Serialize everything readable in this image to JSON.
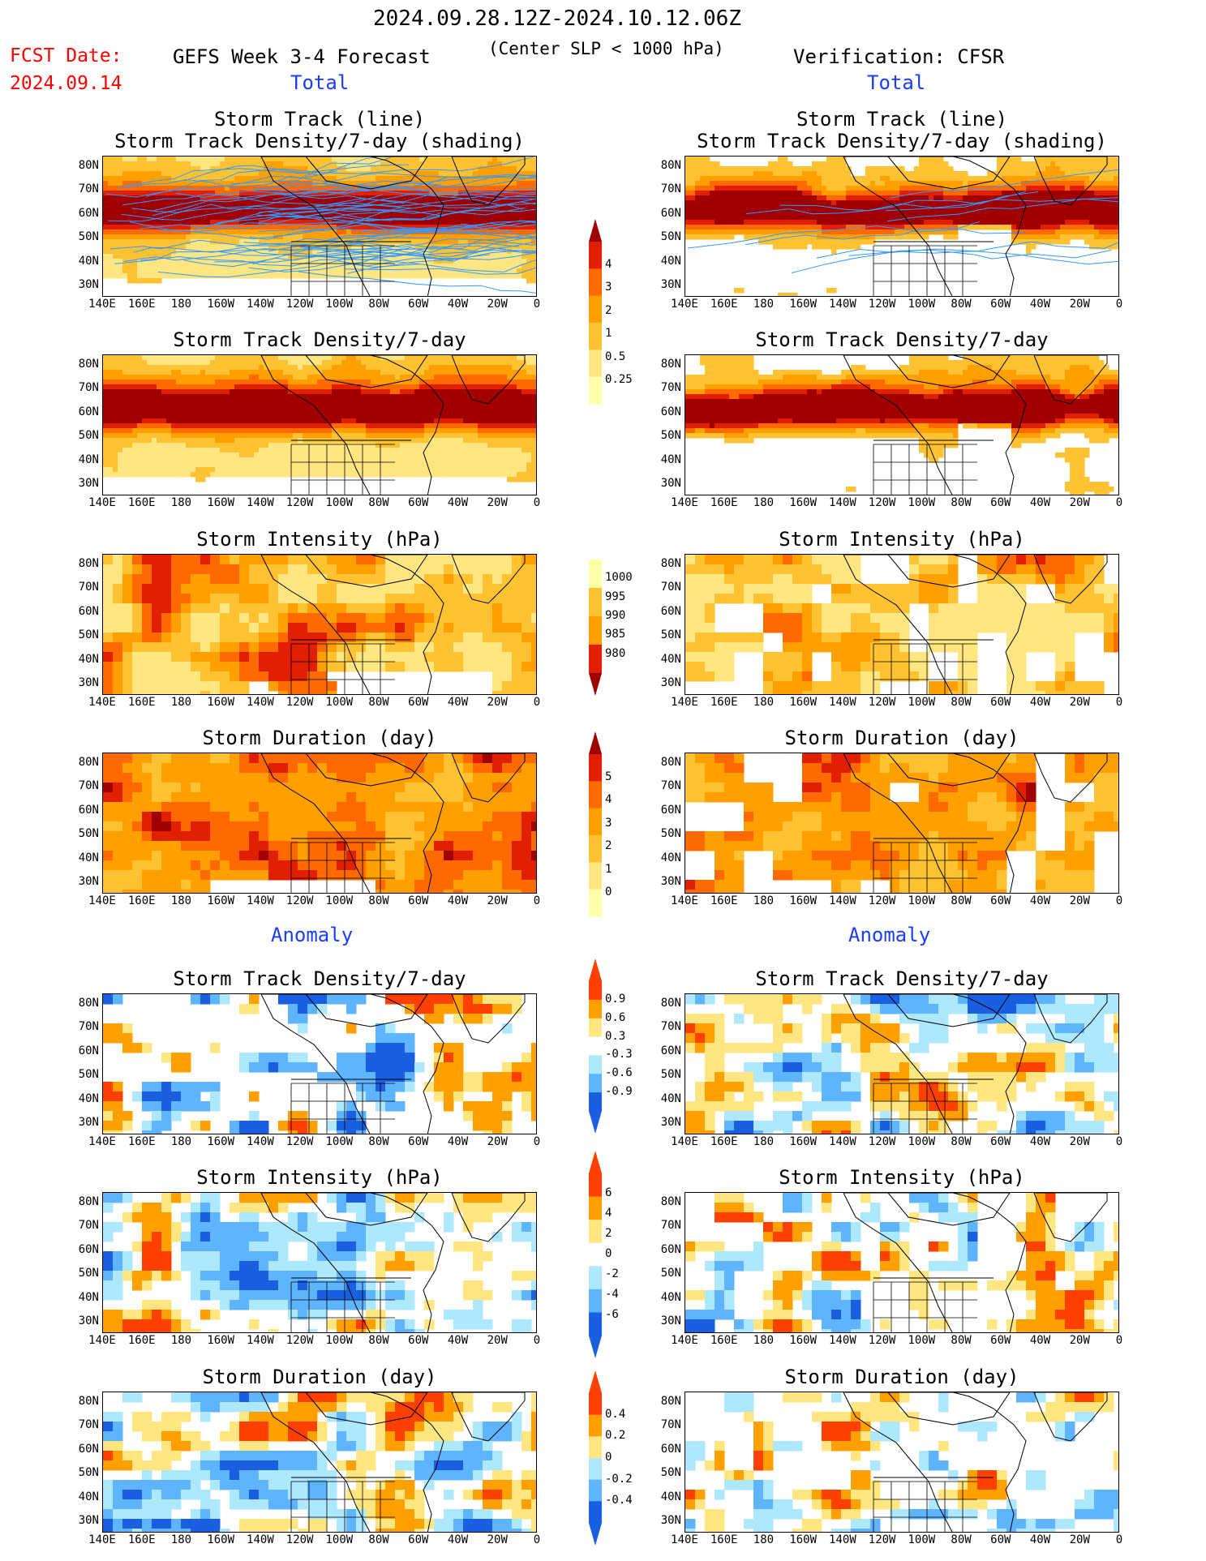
{
  "header": {
    "period": "2024.09.28.12Z-2024.10.12.06Z",
    "fcst_label": "FCST Date:",
    "fcst_date": "2024.09.14",
    "model_title": "GEFS Week 3-4 Forecast",
    "criterion": "(Center SLP < 1000 hPa)",
    "verification": "Verification: CFSR"
  },
  "sections": {
    "total": "Total",
    "anomaly": "Anomaly"
  },
  "panel_titles": {
    "track_line": "Storm Track (line)",
    "track_shading": "Storm Track Density/7-day (shading)",
    "density": "Storm Track Density/7-day",
    "intensity": "Storm Intensity (hPa)",
    "duration": "Storm Duration (day)"
  },
  "axes": {
    "lat_labels": [
      "80N",
      "70N",
      "60N",
      "50N",
      "40N",
      "30N"
    ],
    "lon_labels": [
      "140E",
      "160E",
      "180",
      "160W",
      "140W",
      "120W",
      "100W",
      "80W",
      "60W",
      "40W",
      "20W",
      "0"
    ]
  },
  "colorbars": {
    "density": [
      "4",
      "3",
      "2",
      "1",
      "0.5",
      "0.25"
    ],
    "intensity": [
      "1000",
      "995",
      "990",
      "985",
      "980"
    ],
    "duration": [
      "5",
      "4",
      "3",
      "2",
      "1",
      "0"
    ],
    "density_anom": [
      "0.9",
      "0.6",
      "0.3",
      "-0.3",
      "-0.6",
      "-0.9"
    ],
    "intensity_anom": [
      "6",
      "4",
      "2",
      "0",
      "-2",
      "-4",
      "-6"
    ],
    "duration_anom": [
      "0.4",
      "0.2",
      "0",
      "-0.2",
      "-0.4"
    ]
  },
  "colors": {
    "seq": [
      "#ffffa8",
      "#ffe680",
      "#ffc233",
      "#ffa000",
      "#ff6a00",
      "#e02000",
      "#a00000"
    ],
    "div_warm": [
      "#ffe680",
      "#ffa000",
      "#ff4000"
    ],
    "div_cool": [
      "#aee8ff",
      "#5fb4ff",
      "#1a5fe0"
    ],
    "track_line": "#3399ff"
  }
}
